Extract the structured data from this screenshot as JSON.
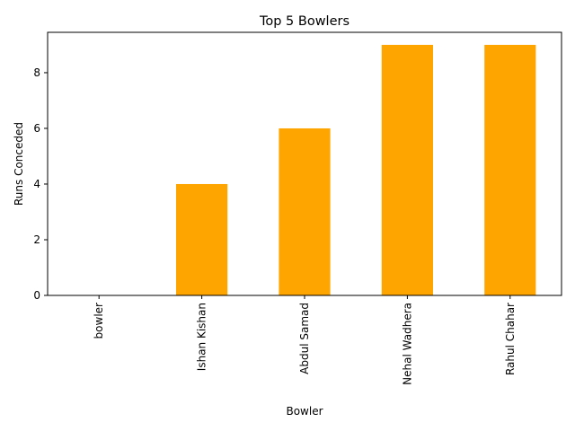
{
  "chart_data": {
    "type": "bar",
    "title": "Top 5 Bowlers",
    "xlabel": "Bowler",
    "ylabel": "Runs Conceded",
    "categories": [
      "bowler",
      "Ishan Kishan",
      "Abdul Samad",
      "Nehal Wadhera",
      "Rahul Chahar"
    ],
    "values": [
      0,
      4,
      6,
      9,
      9
    ],
    "ylim": [
      0,
      9.45
    ],
    "yticks": [
      0,
      2,
      4,
      6,
      8
    ],
    "grid": false,
    "legend": "none",
    "colors": {
      "bar": "#ffa500",
      "axis": "#000000",
      "background": "#ffffff"
    }
  }
}
